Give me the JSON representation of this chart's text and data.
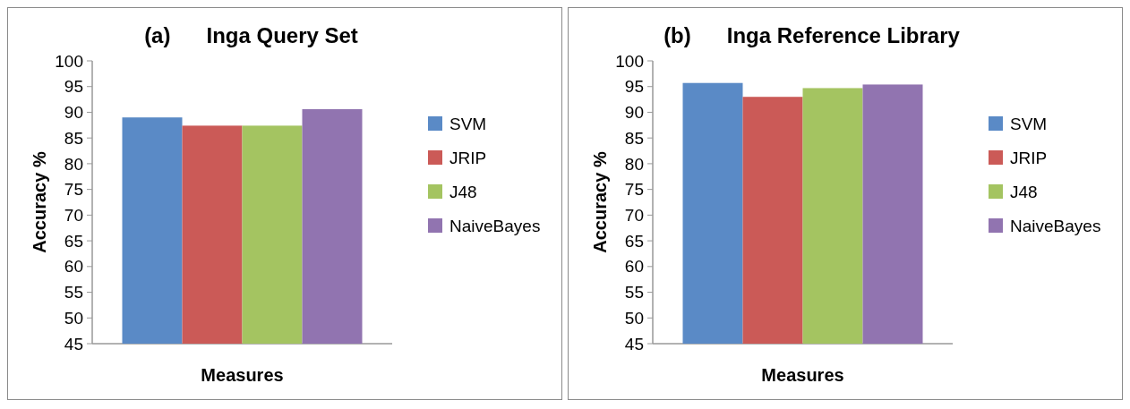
{
  "chart_data": [
    {
      "type": "bar",
      "title": "(a)      Inga Query Set",
      "xlabel": "Measures",
      "ylabel": "Accuracy %",
      "categories": [
        null
      ],
      "ylim": [
        45,
        100
      ],
      "yticks": [
        45,
        50,
        55,
        60,
        65,
        70,
        75,
        80,
        85,
        90,
        95,
        100
      ],
      "legend": "right",
      "grid": false,
      "series": [
        {
          "name": "SVM",
          "color": "#5a8ac6",
          "values": [
            89.0
          ]
        },
        {
          "name": "JRIP",
          "color": "#cb5a57",
          "values": [
            87.4
          ]
        },
        {
          "name": "J48",
          "color": "#a4c461",
          "values": [
            87.4
          ]
        },
        {
          "name": "NaiveBayes",
          "color": "#9174b0",
          "values": [
            90.6
          ]
        }
      ]
    },
    {
      "type": "bar",
      "title": "(b)      Inga Reference Library",
      "xlabel": "Measures",
      "ylabel": "Accuracy %",
      "categories": [
        null
      ],
      "ylim": [
        45,
        100
      ],
      "yticks": [
        45,
        50,
        55,
        60,
        65,
        70,
        75,
        80,
        85,
        90,
        95,
        100
      ],
      "legend": "right",
      "grid": false,
      "series": [
        {
          "name": "SVM",
          "color": "#5a8ac6",
          "values": [
            95.7
          ]
        },
        {
          "name": "JRIP",
          "color": "#cb5a57",
          "values": [
            93.0
          ]
        },
        {
          "name": "J48",
          "color": "#a4c461",
          "values": [
            94.7
          ]
        },
        {
          "name": "NaiveBayes",
          "color": "#9174b0",
          "values": [
            95.4
          ]
        }
      ]
    }
  ]
}
